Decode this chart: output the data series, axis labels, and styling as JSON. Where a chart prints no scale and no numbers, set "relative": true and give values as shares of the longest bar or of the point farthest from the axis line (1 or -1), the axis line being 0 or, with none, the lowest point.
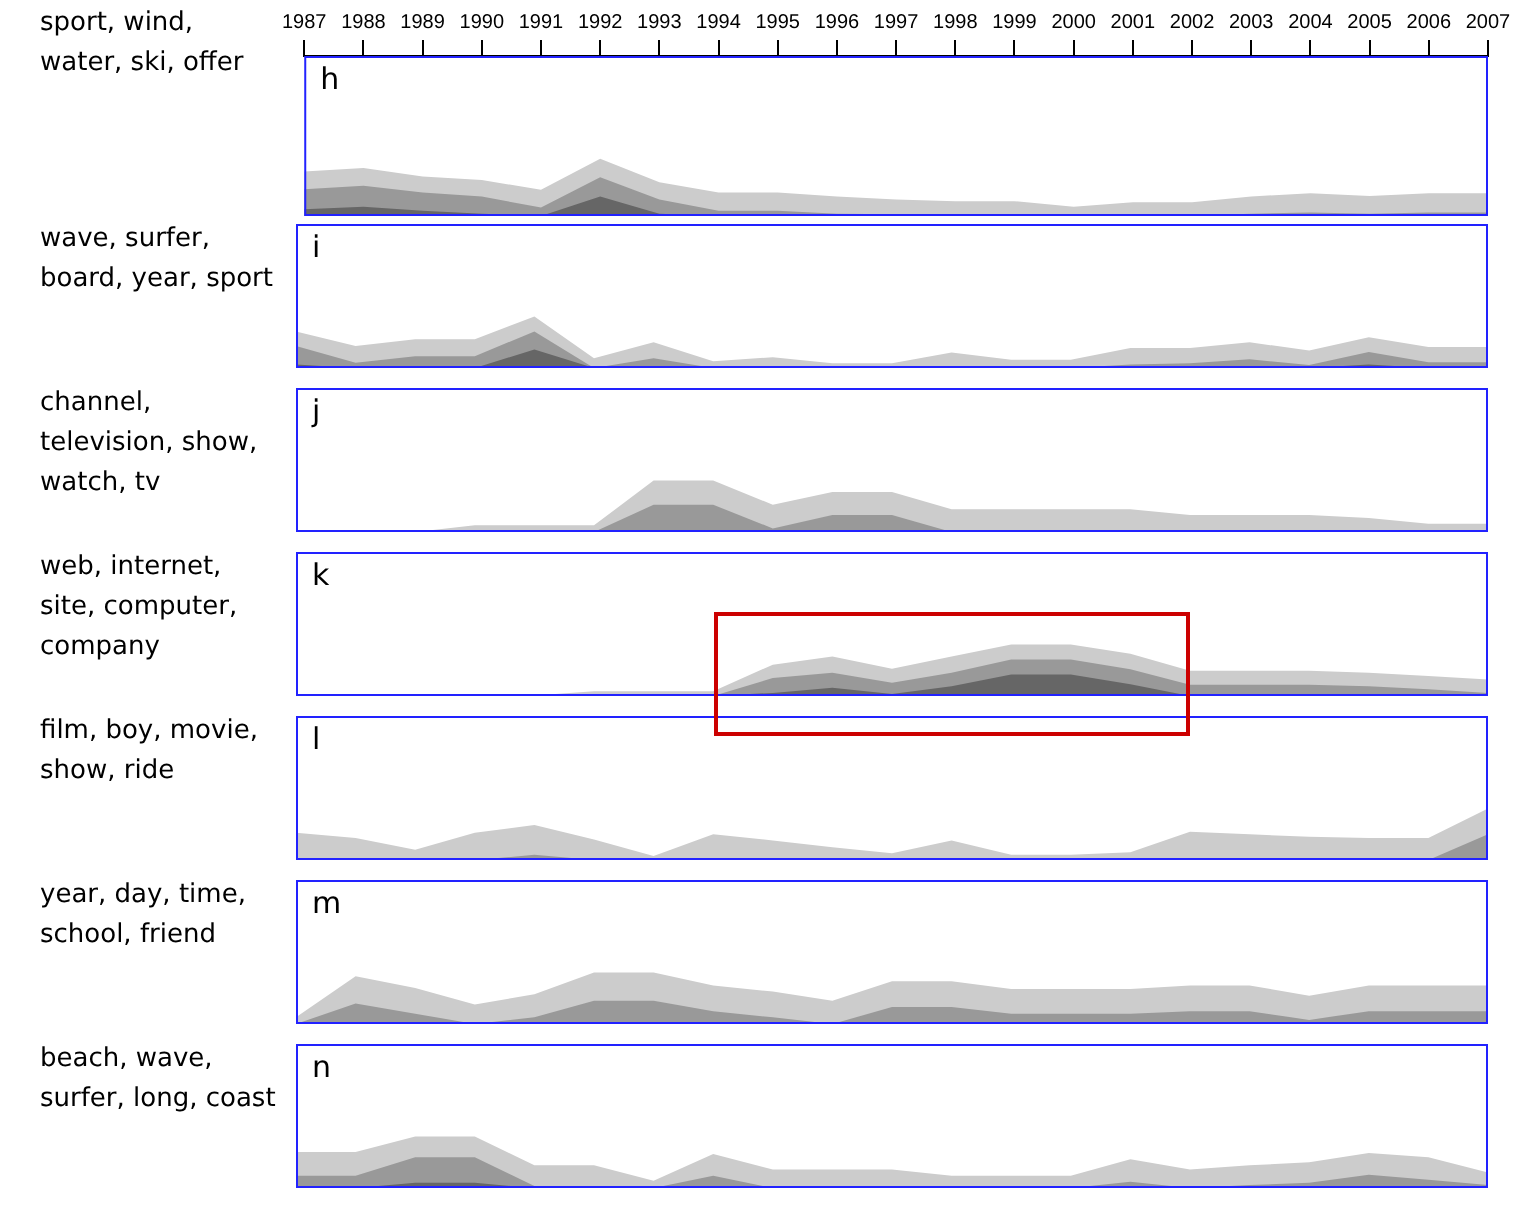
{
  "chart_data": [
    {
      "type": "area",
      "title": "h",
      "ylabel": "sport, wind, water, ski, offer",
      "relative": true,
      "x": [
        1987,
        1988,
        1989,
        1990,
        1991,
        1992,
        1993,
        1994,
        1995,
        1996,
        1997,
        1998,
        1999,
        2000,
        2001,
        2002,
        2003,
        2004,
        2005,
        2006,
        2007
      ],
      "xlim": [
        1987,
        2007
      ],
      "xticks": [
        1987,
        1988,
        1989,
        1990,
        1991,
        1992,
        1993,
        1994,
        1995,
        1996,
        1997,
        1998,
        1999,
        2000,
        2001,
        2002,
        2003,
        2004,
        2005,
        2006,
        2007
      ],
      "grid": false,
      "legend": false,
      "series": [
        {
          "color": "#cccccc",
          "values": [
            0.78,
            0.84,
            0.69,
            0.63,
            0.46,
            1,
            0.59,
            0.41,
            0.41,
            0.34,
            0.29,
            0.26,
            0.26,
            0.16,
            0.24,
            0.24,
            0.34,
            0.4,
            0.35,
            0.4,
            0.4
          ]
        },
        {
          "color": "#999999",
          "values": [
            0.47,
            0.53,
            0.41,
            0.34,
            0.15,
            0.68,
            0.29,
            0.09,
            0.09,
            0.04,
            0.03,
            0.01,
            0.01,
            0,
            0.01,
            0.01,
            0.04,
            0.06,
            0.04,
            0.06,
            0.06
          ]
        },
        {
          "color": "#666666",
          "values": [
            0.12,
            0.16,
            0.09,
            0.04,
            0,
            0.34,
            0.04,
            0,
            0,
            0,
            0,
            0,
            0,
            0,
            0,
            0,
            0,
            0,
            0,
            0,
            0
          ]
        }
      ]
    },
    {
      "type": "area",
      "title": "i",
      "ylabel": "wave, surfer, board, year, sport",
      "relative": true,
      "categories": [
        null,
        null,
        null,
        null,
        null,
        null,
        null,
        null,
        null,
        null,
        null,
        null,
        null,
        null,
        null,
        null,
        null,
        null,
        null,
        null,
        null
      ],
      "grid": false,
      "legend": false,
      "series": [
        {
          "color": "#cccccc",
          "values": [
            0.71,
            0.43,
            0.56,
            0.56,
            1,
            0.19,
            0.5,
            0.13,
            0.21,
            0.09,
            0.09,
            0.3,
            0.16,
            0.16,
            0.39,
            0.39,
            0.5,
            0.34,
            0.6,
            0.41,
            0.41
          ]
        },
        {
          "color": "#999999",
          "values": [
            0.43,
            0.1,
            0.23,
            0.23,
            0.71,
            0,
            0.19,
            0,
            0.01,
            0.01,
            0.01,
            0.01,
            0,
            0,
            0.07,
            0.09,
            0.17,
            0.06,
            0.31,
            0.11,
            0.11
          ]
        },
        {
          "color": "#666666",
          "values": [
            0.07,
            0,
            0,
            0,
            0.36,
            0,
            0,
            0,
            0,
            0,
            0,
            0,
            0,
            0,
            0,
            0,
            0.04,
            0,
            0.07,
            0,
            0
          ]
        }
      ]
    },
    {
      "type": "area",
      "title": "j",
      "ylabel": "channel, television, show, watch, tv",
      "relative": true,
      "categories": [
        null,
        null,
        null,
        null,
        null,
        null,
        null,
        null,
        null,
        null,
        null,
        null,
        null,
        null,
        null,
        null,
        null,
        null,
        null,
        null,
        null
      ],
      "grid": false,
      "legend": false,
      "series": [
        {
          "color": "#cccccc",
          "values": [
            0.04,
            0,
            0,
            0.13,
            0.13,
            0.13,
            1,
            1,
            0.53,
            0.78,
            0.78,
            0.44,
            0.44,
            0.44,
            0.44,
            0.33,
            0.33,
            0.33,
            0.27,
            0.16,
            0.16
          ]
        },
        {
          "color": "#999999",
          "values": [
            0,
            0,
            0,
            0,
            0,
            0,
            0.53,
            0.53,
            0.07,
            0.33,
            0.33,
            0,
            0,
            0,
            0,
            0,
            0,
            0,
            0,
            0,
            0
          ]
        }
      ]
    },
    {
      "type": "area",
      "title": "k",
      "ylabel": "web, internet, site, computer, company",
      "relative": true,
      "categories": [
        null,
        null,
        null,
        null,
        null,
        null,
        null,
        null,
        null,
        null,
        null,
        null,
        null,
        null,
        null,
        null,
        null,
        null,
        null,
        null,
        null
      ],
      "grid": false,
      "legend": false,
      "series": [
        {
          "color": "#cccccc",
          "values": [
            0,
            0,
            0,
            0,
            0.01,
            0.09,
            0.09,
            0.09,
            0.61,
            0.77,
            0.53,
            0.77,
            1,
            1,
            0.82,
            0.49,
            0.49,
            0.49,
            0.45,
            0.39,
            0.32
          ]
        },
        {
          "color": "#999999",
          "values": [
            0,
            0,
            0,
            0,
            0,
            0,
            0,
            0,
            0.35,
            0.45,
            0.26,
            0.45,
            0.71,
            0.71,
            0.52,
            0.22,
            0.22,
            0.22,
            0.19,
            0.13,
            0.06
          ]
        },
        {
          "color": "#666666",
          "values": [
            0,
            0,
            0,
            0,
            0,
            0,
            0,
            0,
            0.06,
            0.16,
            0.04,
            0.19,
            0.42,
            0.42,
            0.23,
            0,
            0,
            0,
            0,
            0,
            0
          ]
        }
      ]
    },
    {
      "type": "area",
      "title": "l",
      "ylabel": "film, boy, movie, show, ride",
      "relative": true,
      "categories": [
        null,
        null,
        null,
        null,
        null,
        null,
        null,
        null,
        null,
        null,
        null,
        null,
        null,
        null,
        null,
        null,
        null,
        null,
        null,
        null,
        null
      ],
      "grid": false,
      "legend": false,
      "series": [
        {
          "color": "#cccccc",
          "values": [
            0.53,
            0.43,
            0.2,
            0.53,
            0.68,
            0.4,
            0.08,
            0.5,
            0.38,
            0.25,
            0.13,
            0.38,
            0.1,
            0.1,
            0.15,
            0.55,
            0.5,
            0.45,
            0.43,
            0.43,
            1
          ]
        },
        {
          "color": "#999999",
          "values": [
            0,
            0,
            0,
            0,
            0.1,
            0,
            0,
            0,
            0,
            0,
            0,
            0,
            0,
            0,
            0,
            0,
            0,
            0,
            0,
            0,
            0.5
          ]
        }
      ]
    },
    {
      "type": "area",
      "title": "m",
      "ylabel": "year, day, time, school, friend",
      "relative": true,
      "categories": [
        null,
        null,
        null,
        null,
        null,
        null,
        null,
        null,
        null,
        null,
        null,
        null,
        null,
        null,
        null,
        null,
        null,
        null,
        null,
        null,
        null
      ],
      "grid": false,
      "legend": false,
      "series": [
        {
          "color": "#cccccc",
          "values": [
            0.13,
            0.93,
            0.7,
            0.38,
            0.58,
            1,
            1,
            0.75,
            0.63,
            0.45,
            0.83,
            0.83,
            0.68,
            0.68,
            0.68,
            0.75,
            0.75,
            0.55,
            0.75,
            0.75,
            0.75
          ]
        },
        {
          "color": "#999999",
          "values": [
            0,
            0.4,
            0.2,
            0,
            0.13,
            0.45,
            0.45,
            0.25,
            0.13,
            0,
            0.33,
            0.33,
            0.2,
            0.2,
            0.2,
            0.25,
            0.25,
            0.08,
            0.25,
            0.25,
            0.25
          ]
        }
      ]
    },
    {
      "type": "area",
      "title": "n",
      "ylabel": "beach, wave, surfer, long, coast",
      "relative": true,
      "categories": [
        null,
        null,
        null,
        null,
        null,
        null,
        null,
        null,
        null,
        null,
        null,
        null,
        null,
        null,
        null,
        null,
        null,
        null,
        null,
        null,
        null
      ],
      "grid": false,
      "legend": false,
      "series": [
        {
          "color": "#cccccc",
          "values": [
            0.7,
            0.7,
            1,
            1,
            0.44,
            0.44,
            0.14,
            0.66,
            0.36,
            0.36,
            0.36,
            0.24,
            0.24,
            0.24,
            0.56,
            0.36,
            0.44,
            0.5,
            0.68,
            0.6,
            0.3
          ]
        },
        {
          "color": "#999999",
          "values": [
            0.24,
            0.24,
            0.6,
            0.6,
            0.04,
            0.04,
            0,
            0.24,
            0,
            0,
            0,
            0,
            0,
            0,
            0.12,
            0,
            0.06,
            0.1,
            0.26,
            0.16,
            0.06
          ]
        },
        {
          "color": "#666666",
          "values": [
            0,
            0,
            0.1,
            0.1,
            0,
            0,
            0,
            0,
            0,
            0,
            0,
            0,
            0,
            0,
            0,
            0,
            0,
            0,
            0,
            0,
            0
          ]
        }
      ]
    }
  ]
}
